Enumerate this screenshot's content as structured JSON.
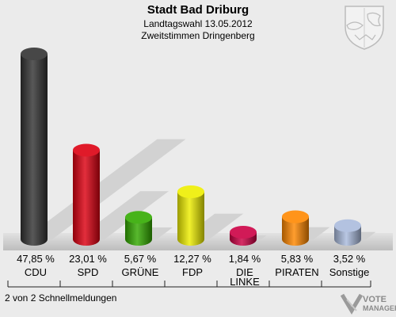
{
  "header": {
    "title": "Stadt Bad Driburg",
    "subtitle1": "Landtagswahl 13.05.2012",
    "subtitle2": "Zweitstimmen Dringenberg"
  },
  "footer": {
    "status": "2 von 2 Schnellmeldungen",
    "brand_line1": "VOTE",
    "brand_line2": "MANAGER"
  },
  "chart_data": {
    "type": "bar",
    "title": "Stadt Bad Driburg",
    "categories": [
      "CDU",
      "SPD",
      "GRÜNE",
      "FDP",
      "DIE LINKE",
      "PIRATEN",
      "Sonstige"
    ],
    "labels": [
      [
        "CDU"
      ],
      [
        "SPD"
      ],
      [
        "GRÜNE"
      ],
      [
        "FDP"
      ],
      [
        "DIE",
        "LINKE"
      ],
      [
        "PIRATEN"
      ],
      [
        "Sonstige"
      ]
    ],
    "values": [
      47.85,
      23.01,
      5.67,
      12.27,
      1.84,
      5.83,
      3.52
    ],
    "value_labels": [
      "47,85 %",
      "23,01 %",
      "5,67 %",
      "12,27 %",
      "1,84 %",
      "5,83 %",
      "3,52 %"
    ],
    "colors": [
      "#333333",
      "#dd0011",
      "#33aa00",
      "#eeee00",
      "#cc0044",
      "#ff8800",
      "#aabbdd"
    ],
    "ylim": [
      0,
      47.85
    ],
    "grid": false,
    "legend": "none"
  }
}
